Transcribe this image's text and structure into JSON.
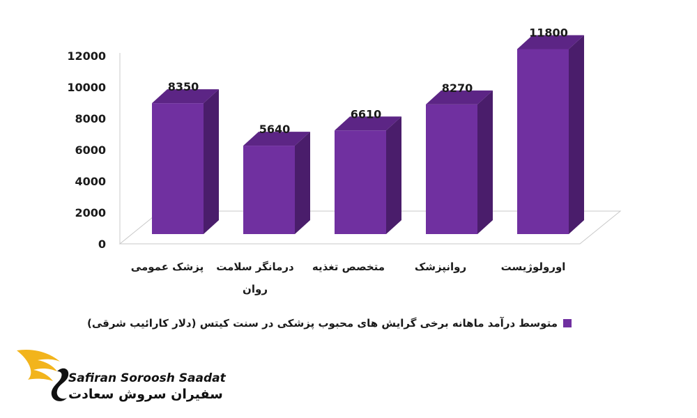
{
  "chart_data": {
    "type": "bar",
    "categories": [
      "پزشک عمومی",
      "درمانگر سلامت روان",
      "متخصص تغذیه",
      "روانپزشک",
      "اورولوژیست"
    ],
    "series": [
      {
        "name": "متوسط درآمد ماهانه برخی گرایش های محبوب پزشکی در سنت کیتس (دلار کارائیب شرقی)",
        "values": [
          8350,
          5640,
          6610,
          8270,
          11800
        ]
      }
    ],
    "ylim": [
      0,
      12000
    ],
    "yticks": [
      "0",
      "2000",
      "4000",
      "6000",
      "8000",
      "10000",
      "12000"
    ],
    "data_labels": [
      "8350",
      "5640",
      "6610",
      "8270",
      "11800"
    ],
    "legend_position": "bottom",
    "grid": false,
    "style": "3d-column",
    "colors": {
      "bar_front": "#7030a0",
      "bar_top": "#5c2585",
      "bar_side": "#4a1d6b",
      "floor": "#ffffff"
    }
  },
  "legend": {
    "label": "متوسط درآمد ماهانه برخی گرایش های محبوب پزشکی در سنت کیتس (دلار کارائیب شرقی)",
    "color": "#7030a0"
  },
  "logo": {
    "text_en": "Safiran Soroosh Saadat",
    "text_fa": "سفیران سروش سعادت",
    "icon": "swan-wing-icon",
    "color": "#f2b41c"
  }
}
